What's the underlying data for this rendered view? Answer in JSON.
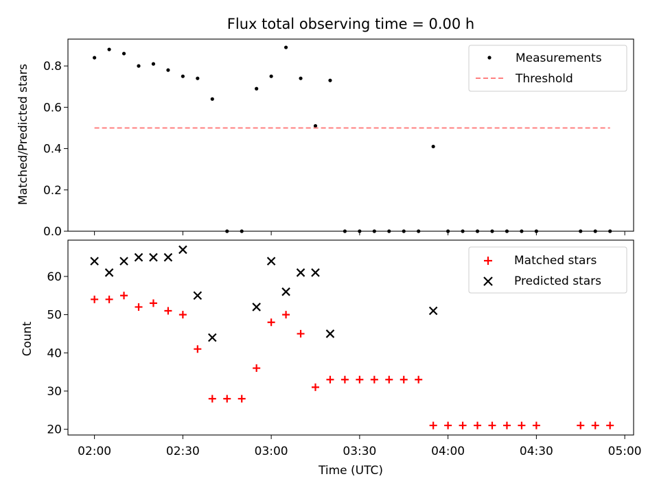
{
  "chart_data": {
    "title": "Flux total observing time = 0.00 h",
    "xlabel": "Time (UTC)",
    "x_unit": "minutes after 02:00 UTC",
    "x_ticks": [
      {
        "value": 0,
        "label": "02:00"
      },
      {
        "value": 30,
        "label": "02:30"
      },
      {
        "value": 60,
        "label": "03:00"
      },
      {
        "value": 90,
        "label": "03:30"
      },
      {
        "value": 120,
        "label": "04:00"
      },
      {
        "value": 150,
        "label": "04:30"
      },
      {
        "value": 180,
        "label": "05:00"
      }
    ],
    "xlim": [
      -9,
      183
    ],
    "panels": [
      {
        "id": "ratio",
        "type": "scatter",
        "ylabel": "Matched/Predicted stars",
        "ylim": [
          0,
          0.93
        ],
        "y_ticks": [
          {
            "value": 0.0,
            "label": "0.0"
          },
          {
            "value": 0.2,
            "label": "0.2"
          },
          {
            "value": 0.4,
            "label": "0.4"
          },
          {
            "value": 0.6,
            "label": "0.6"
          },
          {
            "value": 0.8,
            "label": "0.8"
          }
        ],
        "legend_position": "top-right",
        "series": [
          {
            "name": "Measurements",
            "marker": "dot",
            "color": "#000000",
            "x": [
              0,
              5,
              10,
              15,
              20,
              25,
              30,
              35,
              40,
              45,
              50,
              55,
              60,
              65,
              70,
              75,
              80,
              85,
              90,
              95,
              100,
              105,
              110,
              115,
              120,
              125,
              130,
              135,
              140,
              145,
              150,
              165,
              170,
              175
            ],
            "y": [
              0.84,
              0.88,
              0.86,
              0.8,
              0.81,
              0.78,
              0.75,
              0.74,
              0.64,
              0.0,
              0.0,
              0.69,
              0.75,
              0.89,
              0.74,
              0.51,
              0.73,
              0.0,
              0.0,
              0.0,
              0.0,
              0.0,
              0.0,
              0.41,
              0.0,
              0.0,
              0.0,
              0.0,
              0.0,
              0.0,
              0.0,
              0.0,
              0.0,
              0.0
            ]
          },
          {
            "name": "Threshold",
            "marker": "dashed-line",
            "color": "#ff7f7f",
            "x": [
              0,
              175
            ],
            "y": [
              0.5,
              0.5
            ]
          }
        ]
      },
      {
        "id": "counts",
        "type": "scatter",
        "ylabel": "Count",
        "ylim": [
          18.5,
          69.5
        ],
        "y_ticks": [
          {
            "value": 20,
            "label": "20"
          },
          {
            "value": 30,
            "label": "30"
          },
          {
            "value": 40,
            "label": "40"
          },
          {
            "value": 50,
            "label": "50"
          },
          {
            "value": 60,
            "label": "60"
          }
        ],
        "legend_position": "top-right",
        "series": [
          {
            "name": "Matched stars",
            "marker": "plus",
            "color": "#ff0000",
            "x": [
              0,
              5,
              10,
              15,
              20,
              25,
              30,
              35,
              40,
              45,
              50,
              55,
              60,
              65,
              70,
              75,
              80,
              85,
              90,
              95,
              100,
              105,
              110,
              115,
              120,
              125,
              130,
              135,
              140,
              145,
              150,
              165,
              170,
              175
            ],
            "y": [
              54,
              54,
              55,
              52,
              53,
              51,
              50,
              41,
              28,
              28,
              28,
              36,
              48,
              50,
              45,
              31,
              33,
              33,
              33,
              33,
              33,
              33,
              33,
              21,
              21,
              21,
              21,
              21,
              21,
              21,
              21,
              21,
              21,
              21
            ]
          },
          {
            "name": "Predicted stars",
            "marker": "x",
            "color": "#000000",
            "x": [
              0,
              5,
              10,
              15,
              20,
              25,
              30,
              35,
              40,
              55,
              60,
              65,
              70,
              75,
              80,
              115
            ],
            "y": [
              64,
              61,
              64,
              65,
              65,
              65,
              67,
              55,
              44,
              52,
              64,
              56,
              61,
              61,
              45,
              51
            ]
          }
        ]
      }
    ]
  }
}
